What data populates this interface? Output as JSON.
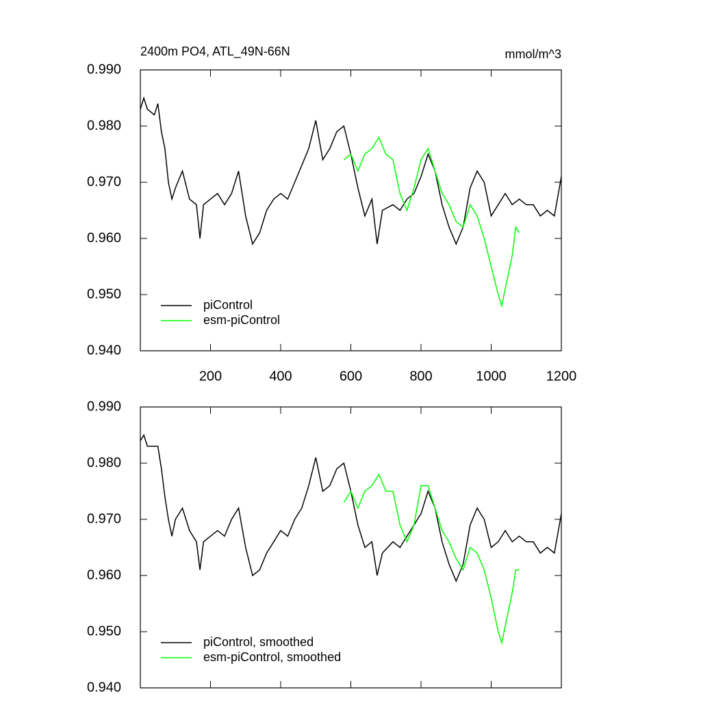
{
  "chart_data": [
    {
      "type": "line",
      "title": "2400m PO4, ATL_49N-66N",
      "units": "mmol/m^3",
      "xlim": [
        0,
        1200
      ],
      "xticks": [
        200,
        400,
        600,
        800,
        1000,
        1200
      ],
      "show_xtick_labels": true,
      "ylim": [
        0.94,
        0.99
      ],
      "yticks": [
        {
          "value": 0.94,
          "label": "0.940"
        },
        {
          "value": 0.95,
          "label": "0.950"
        },
        {
          "value": 0.96,
          "label": "0.960"
        },
        {
          "value": 0.97,
          "label": "0.970"
        },
        {
          "value": 0.98,
          "label": "0.980"
        },
        {
          "value": 0.99,
          "label": "0.990"
        }
      ],
      "legend": "lower left",
      "series": [
        {
          "name": "piControl",
          "color": "#000000",
          "x": [
            0,
            10,
            20,
            40,
            50,
            60,
            70,
            80,
            90,
            100,
            120,
            140,
            160,
            170,
            180,
            200,
            220,
            240,
            260,
            280,
            300,
            320,
            340,
            360,
            380,
            400,
            420,
            440,
            460,
            480,
            500,
            520,
            540,
            560,
            580,
            600,
            620,
            640,
            660,
            675,
            690,
            720,
            740,
            760,
            780,
            800,
            820,
            840,
            860,
            880,
            900,
            920,
            940,
            960,
            980,
            1000,
            1020,
            1040,
            1060,
            1080,
            1100,
            1120,
            1140,
            1160,
            1180,
            1200
          ],
          "values": [
            0.983,
            0.985,
            0.983,
            0.982,
            0.984,
            0.979,
            0.976,
            0.97,
            0.967,
            0.969,
            0.972,
            0.967,
            0.966,
            0.96,
            0.966,
            0.967,
            0.968,
            0.966,
            0.968,
            0.972,
            0.964,
            0.959,
            0.961,
            0.965,
            0.967,
            0.968,
            0.967,
            0.97,
            0.973,
            0.976,
            0.981,
            0.974,
            0.976,
            0.979,
            0.98,
            0.975,
            0.969,
            0.964,
            0.967,
            0.959,
            0.965,
            0.966,
            0.965,
            0.967,
            0.968,
            0.971,
            0.975,
            0.972,
            0.966,
            0.962,
            0.959,
            0.962,
            0.969,
            0.972,
            0.97,
            0.964,
            0.966,
            0.968,
            0.966,
            0.967,
            0.966,
            0.966,
            0.964,
            0.965,
            0.964,
            0.971
          ]
        },
        {
          "name": "esm-piControl",
          "color": "#00ff00",
          "x": [
            580,
            600,
            620,
            640,
            660,
            680,
            700,
            720,
            740,
            760,
            780,
            800,
            820,
            840,
            860,
            880,
            900,
            920,
            940,
            960,
            980,
            1000,
            1020,
            1030,
            1040,
            1060,
            1070,
            1080
          ],
          "values": [
            0.974,
            0.975,
            0.972,
            0.975,
            0.976,
            0.978,
            0.975,
            0.974,
            0.968,
            0.965,
            0.969,
            0.974,
            0.976,
            0.972,
            0.968,
            0.966,
            0.963,
            0.962,
            0.966,
            0.964,
            0.96,
            0.955,
            0.95,
            0.948,
            0.951,
            0.957,
            0.962,
            0.961
          ]
        }
      ]
    },
    {
      "type": "line",
      "xlim": [
        0,
        1200
      ],
      "xticks": [
        200,
        400,
        600,
        800,
        1000,
        1200
      ],
      "show_xtick_labels": false,
      "ylim": [
        0.94,
        0.99
      ],
      "yticks": [
        {
          "value": 0.94,
          "label": "0.940"
        },
        {
          "value": 0.95,
          "label": "0.950"
        },
        {
          "value": 0.96,
          "label": "0.960"
        },
        {
          "value": 0.97,
          "label": "0.970"
        },
        {
          "value": 0.98,
          "label": "0.980"
        },
        {
          "value": 0.99,
          "label": "0.990"
        }
      ],
      "legend": "lower left",
      "series": [
        {
          "name": "piControl, smoothed",
          "color": "#000000",
          "x": [
            0,
            10,
            20,
            40,
            50,
            60,
            70,
            80,
            90,
            100,
            120,
            140,
            160,
            170,
            180,
            200,
            220,
            240,
            260,
            280,
            300,
            320,
            340,
            360,
            380,
            400,
            420,
            440,
            460,
            480,
            500,
            520,
            540,
            560,
            580,
            600,
            620,
            640,
            660,
            675,
            690,
            720,
            740,
            760,
            780,
            800,
            820,
            840,
            860,
            880,
            900,
            920,
            940,
            960,
            980,
            1000,
            1020,
            1040,
            1060,
            1080,
            1100,
            1120,
            1140,
            1160,
            1180,
            1200
          ],
          "values": [
            0.984,
            0.985,
            0.983,
            0.983,
            0.983,
            0.979,
            0.974,
            0.97,
            0.967,
            0.97,
            0.972,
            0.968,
            0.966,
            0.961,
            0.966,
            0.967,
            0.968,
            0.967,
            0.97,
            0.972,
            0.965,
            0.96,
            0.961,
            0.964,
            0.966,
            0.968,
            0.967,
            0.97,
            0.972,
            0.976,
            0.981,
            0.975,
            0.976,
            0.979,
            0.98,
            0.975,
            0.969,
            0.965,
            0.966,
            0.96,
            0.964,
            0.966,
            0.965,
            0.967,
            0.969,
            0.971,
            0.975,
            0.972,
            0.966,
            0.962,
            0.959,
            0.962,
            0.969,
            0.972,
            0.97,
            0.965,
            0.966,
            0.968,
            0.966,
            0.967,
            0.966,
            0.966,
            0.964,
            0.965,
            0.964,
            0.971
          ]
        },
        {
          "name": "esm-piControl, smoothed",
          "color": "#00ff00",
          "x": [
            580,
            600,
            620,
            640,
            660,
            680,
            700,
            720,
            740,
            760,
            780,
            800,
            820,
            840,
            860,
            880,
            900,
            920,
            940,
            960,
            980,
            1000,
            1020,
            1030,
            1040,
            1060,
            1070,
            1080
          ],
          "values": [
            0.973,
            0.975,
            0.972,
            0.975,
            0.976,
            0.978,
            0.975,
            0.975,
            0.969,
            0.966,
            0.969,
            0.976,
            0.976,
            0.972,
            0.968,
            0.966,
            0.963,
            0.961,
            0.965,
            0.964,
            0.961,
            0.956,
            0.95,
            0.948,
            0.951,
            0.957,
            0.961,
            0.961
          ]
        }
      ]
    }
  ]
}
